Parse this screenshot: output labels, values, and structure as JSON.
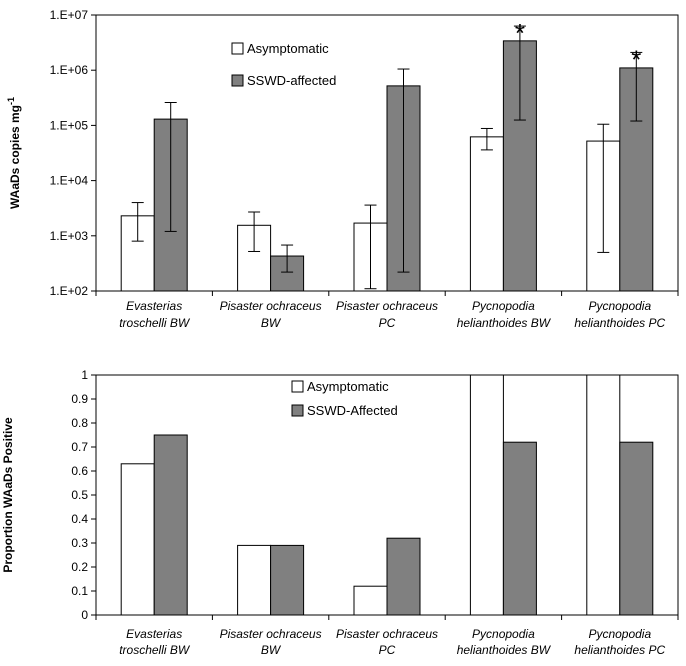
{
  "chart_data": [
    {
      "type": "bar",
      "yscale": "log",
      "ylabel": "WAaDs copies mg",
      "ylabel_superscript": "-1",
      "ylim": [
        100,
        10000000
      ],
      "yticks": [
        "1.E+02",
        "1.E+03",
        "1.E+04",
        "1.E+05",
        "1.E+06",
        "1.E+07"
      ],
      "legend_position": "top-center",
      "categories": [
        [
          "Evasterias",
          "troschelli BW"
        ],
        [
          "Pisaster ochraceus",
          "BW"
        ],
        [
          "Pisaster ochraceus",
          "PC"
        ],
        [
          "Pycnopodia",
          "helianthoides BW"
        ],
        [
          "Pycnopodia",
          "helianthoides PC"
        ]
      ],
      "series": [
        {
          "name": "Asymptomatic",
          "color": "#ffffff",
          "values": [
            2300,
            1550,
            1700,
            62000,
            52000
          ],
          "error_low": [
            800,
            520,
            110,
            36000,
            500
          ],
          "error_high": [
            4000,
            2700,
            3600,
            88000,
            105000
          ]
        },
        {
          "name": "SSWD-affected",
          "color": "#808080",
          "values": [
            130000,
            430,
            520000,
            3400000,
            1100000
          ],
          "error_low": [
            1200,
            220,
            220,
            125000,
            120000
          ],
          "error_high": [
            260000,
            680,
            1050000,
            6300000,
            2100000
          ]
        }
      ],
      "significance_marks": [
        "",
        "",
        "",
        "*",
        "*"
      ]
    },
    {
      "type": "bar",
      "ylabel": "Proportion WAaDs Positive",
      "ylim": [
        0,
        1
      ],
      "yticks": [
        "0",
        "0.1",
        "0.2",
        "0.3",
        "0.4",
        "0.5",
        "0.6",
        "0.7",
        "0.8",
        "0.9",
        "1"
      ],
      "legend_position": "top-center",
      "categories": [
        [
          "Evasterias",
          "troschelli BW"
        ],
        [
          "Pisaster ochraceus",
          "BW"
        ],
        [
          "Pisaster ochraceus",
          "PC"
        ],
        [
          "Pycnopodia",
          "helianthoides BW"
        ],
        [
          "Pycnopodia",
          "helianthoides PC"
        ]
      ],
      "series": [
        {
          "name": "Asymptomatic",
          "color": "#ffffff",
          "values": [
            0.63,
            0.29,
            0.12,
            1.0,
            1.0
          ]
        },
        {
          "name": "SSWD-Affected",
          "color": "#808080",
          "values": [
            0.75,
            0.29,
            0.32,
            0.72,
            0.72
          ]
        }
      ]
    }
  ]
}
